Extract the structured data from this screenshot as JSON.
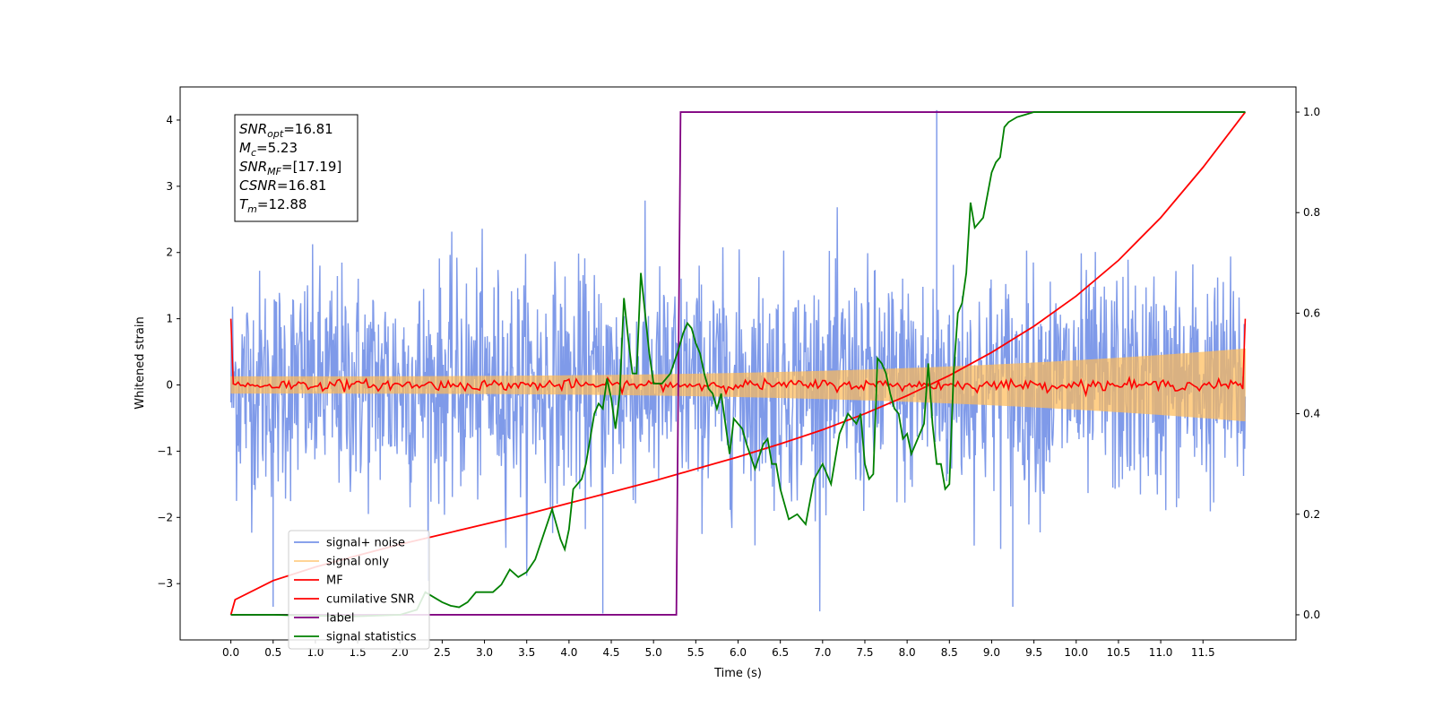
{
  "chart_data": {
    "type": "line",
    "xlabel": "Time (s)",
    "ylabel": "Whitened strain",
    "xlim": [
      -0.6,
      12.6
    ],
    "ylim": [
      -3.85,
      4.5
    ],
    "y2lim": [
      -0.05,
      1.05
    ],
    "x_ticks": [
      0.0,
      0.5,
      1.0,
      1.5,
      2.0,
      2.5,
      3.0,
      3.5,
      4.0,
      4.5,
      5.0,
      5.5,
      6.0,
      6.5,
      7.0,
      7.5,
      8.0,
      8.5,
      9.0,
      9.5,
      10.0,
      10.5,
      11.0,
      11.5
    ],
    "x_tick_labels": [
      "0.0",
      "0.5",
      "1.0",
      "1.5",
      "2.0",
      "2.5",
      "3.0",
      "3.5",
      "4.0",
      "4.5",
      "5.0",
      "5.5",
      "6.0",
      "6.5",
      "7.0",
      "7.5",
      "8.0",
      "8.5",
      "9.0",
      "9.5",
      "10.0",
      "10.5",
      "11.0",
      "11.5"
    ],
    "y_ticks": [
      -3,
      -2,
      -1,
      0,
      1,
      2,
      3,
      4
    ],
    "y_tick_labels": [
      "−3",
      "−2",
      "−1",
      "0",
      "1",
      "2",
      "3",
      "4"
    ],
    "y2_ticks": [
      0.0,
      0.2,
      0.4,
      0.6,
      0.8,
      1.0
    ],
    "y2_tick_labels": [
      "0.0",
      "0.2",
      "0.4",
      "0.6",
      "0.8",
      "1.0"
    ],
    "grid": false,
    "legend_position": "bottom-left",
    "annotation": [
      {
        "main": "SNR",
        "sub": "opt",
        "rest": "=16.81"
      },
      {
        "main": "M",
        "sub": "c",
        "rest": "=5.23"
      },
      {
        "main": "SNR",
        "sub": "MF",
        "rest": "=[17.19]"
      },
      {
        "main": "CSNR",
        "sub": "",
        "rest": "=16.81"
      },
      {
        "main": "T",
        "sub": "m",
        "rest": "=12.88"
      }
    ],
    "series": [
      {
        "name": "signal+ noise",
        "color": "#7895e8",
        "axis": "left",
        "kind": "noise",
        "t_end": 12.0,
        "noise_std": 0.85,
        "spikes": [
          [
            4.4,
            -3.45
          ],
          [
            8.35,
            4.15
          ],
          [
            9.25,
            -3.35
          ],
          [
            0.5,
            -3.35
          ]
        ]
      },
      {
        "name": "signal only",
        "color": "#ffbb55",
        "axis": "left",
        "kind": "chirp",
        "t_end": 12.0,
        "amp_start": 0.13,
        "amp_end": 0.55
      },
      {
        "name": "MF",
        "color": "#ff0000",
        "axis": "left",
        "kind": "mf",
        "t_end": 12.0,
        "edge_value": 1.0,
        "noise_std": 0.04
      },
      {
        "name": "cumilative SNR",
        "color": "#ff0000",
        "axis": "right",
        "x": [
          0.0,
          0.05,
          0.5,
          1.0,
          1.5,
          2.0,
          2.5,
          3.0,
          3.5,
          4.0,
          4.5,
          5.0,
          5.5,
          6.0,
          6.5,
          7.0,
          7.5,
          8.0,
          8.5,
          9.0,
          9.5,
          10.0,
          10.5,
          11.0,
          11.5,
          12.0
        ],
        "y": [
          0.0,
          0.03,
          0.068,
          0.095,
          0.118,
          0.14,
          0.16,
          0.18,
          0.2,
          0.222,
          0.244,
          0.266,
          0.29,
          0.314,
          0.34,
          0.368,
          0.4,
          0.436,
          0.476,
          0.522,
          0.574,
          0.634,
          0.705,
          0.79,
          0.89,
          1.0
        ]
      },
      {
        "name": "label",
        "color": "#800080",
        "axis": "right",
        "x": [
          0.0,
          5.27,
          5.32,
          12.0
        ],
        "y": [
          0.0,
          0.0,
          1.0,
          1.0
        ]
      },
      {
        "name": "signal statistics",
        "color": "#008000",
        "axis": "right",
        "x": [
          0.0,
          0.5,
          1.0,
          1.5,
          2.0,
          2.2,
          2.3,
          2.4,
          2.5,
          2.6,
          2.7,
          2.8,
          2.9,
          3.0,
          3.1,
          3.2,
          3.3,
          3.4,
          3.5,
          3.6,
          3.7,
          3.8,
          3.9,
          3.95,
          4.0,
          4.05,
          4.1,
          4.15,
          4.2,
          4.3,
          4.35,
          4.4,
          4.45,
          4.5,
          4.55,
          4.6,
          4.65,
          4.7,
          4.75,
          4.8,
          4.85,
          4.9,
          4.95,
          5.0,
          5.05,
          5.1,
          5.2,
          5.3,
          5.35,
          5.4,
          5.45,
          5.5,
          5.55,
          5.6,
          5.65,
          5.7,
          5.75,
          5.8,
          5.85,
          5.9,
          5.95,
          6.0,
          6.05,
          6.1,
          6.2,
          6.3,
          6.35,
          6.4,
          6.45,
          6.5,
          6.6,
          6.7,
          6.8,
          6.9,
          7.0,
          7.1,
          7.2,
          7.3,
          7.4,
          7.45,
          7.5,
          7.55,
          7.6,
          7.65,
          7.7,
          7.75,
          7.8,
          7.85,
          7.9,
          7.95,
          8.0,
          8.05,
          8.1,
          8.15,
          8.2,
          8.25,
          8.3,
          8.35,
          8.4,
          8.45,
          8.5,
          8.55,
          8.6,
          8.65,
          8.7,
          8.75,
          8.8,
          8.85,
          8.9,
          9.0,
          9.05,
          9.1,
          9.15,
          9.2,
          9.3,
          9.4,
          9.5,
          9.7,
          9.9,
          10.5,
          11.0,
          12.0
        ],
        "y": [
          0.0,
          0.0,
          -0.002,
          -0.003,
          0.0,
          0.01,
          0.045,
          0.035,
          0.025,
          0.018,
          0.015,
          0.025,
          0.045,
          0.045,
          0.045,
          0.06,
          0.09,
          0.075,
          0.085,
          0.11,
          0.16,
          0.21,
          0.15,
          0.13,
          0.17,
          0.25,
          0.26,
          0.27,
          0.3,
          0.4,
          0.42,
          0.41,
          0.47,
          0.43,
          0.37,
          0.44,
          0.63,
          0.55,
          0.48,
          0.48,
          0.68,
          0.6,
          0.52,
          0.46,
          0.46,
          0.46,
          0.48,
          0.53,
          0.56,
          0.58,
          0.57,
          0.54,
          0.52,
          0.48,
          0.45,
          0.44,
          0.41,
          0.44,
          0.38,
          0.32,
          0.39,
          0.38,
          0.37,
          0.34,
          0.29,
          0.34,
          0.35,
          0.3,
          0.3,
          0.25,
          0.19,
          0.2,
          0.18,
          0.27,
          0.3,
          0.26,
          0.36,
          0.4,
          0.38,
          0.4,
          0.3,
          0.27,
          0.28,
          0.51,
          0.5,
          0.48,
          0.44,
          0.41,
          0.4,
          0.35,
          0.36,
          0.32,
          0.34,
          0.36,
          0.38,
          0.5,
          0.38,
          0.3,
          0.3,
          0.25,
          0.26,
          0.48,
          0.6,
          0.62,
          0.68,
          0.82,
          0.77,
          0.78,
          0.79,
          0.88,
          0.9,
          0.91,
          0.97,
          0.98,
          0.99,
          0.995,
          1.0,
          1.0,
          1.0,
          1.0,
          1.0,
          1.0
        ]
      }
    ]
  }
}
